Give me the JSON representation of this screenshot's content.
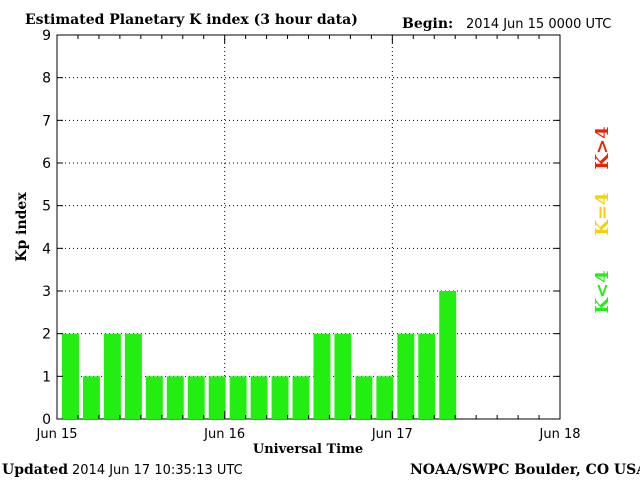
{
  "header": {
    "title": "Estimated Planetary K index (3 hour data)",
    "begin_label": "Begin:",
    "begin_value": "2014 Jun 15 0000 UTC"
  },
  "footer": {
    "updated_label": "Updated",
    "updated_value": "2014 Jun 17 10:35:13 UTC",
    "source": "NOAA/SWPC Boulder, CO USA"
  },
  "legend": {
    "low": "K<4",
    "equal": "K=4",
    "high": "K>4",
    "colors": {
      "low": "#22ee11",
      "equal": "#f6d300",
      "high": "#ee2200"
    }
  },
  "chart_data": {
    "type": "bar",
    "title": "Estimated Planetary K index (3 hour data)",
    "xlabel": "Universal Time",
    "ylabel": "Kp index",
    "ylim": [
      0,
      9
    ],
    "yticks": [
      0,
      1,
      2,
      3,
      4,
      5,
      6,
      7,
      8,
      9
    ],
    "x_tick_labels": [
      "Jun 15",
      "Jun 16",
      "Jun 17",
      "Jun 18"
    ],
    "interval_hours": 3,
    "grid": true,
    "values": [
      2,
      1,
      2,
      2,
      1,
      1,
      1,
      1,
      1,
      1,
      1,
      1,
      2,
      2,
      1,
      1,
      2,
      2,
      3
    ],
    "bar_color": "#22ee11"
  }
}
